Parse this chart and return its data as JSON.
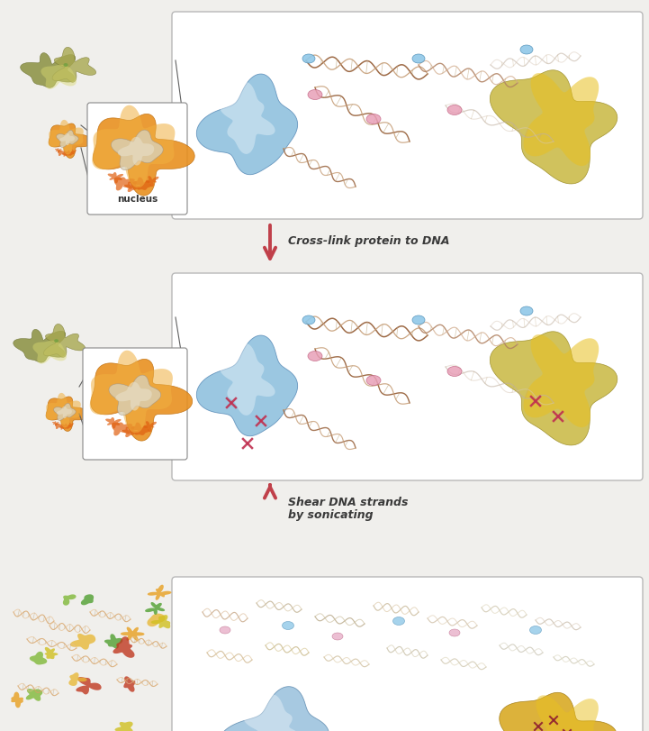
{
  "bg_color": "#f0efec",
  "panel_bg": "#ffffff",
  "panel_border": "#b0b0b0",
  "arrow_color": "#c0404a",
  "text_color": "#3a3a3a",
  "step1_label": "Cross-link protein to DNA",
  "step2_label": "Shear DNA strands\nby sonicating",
  "nucleus_label": "nucleus",
  "font_family": "DejaVu Sans",
  "fig_width": 7.21,
  "fig_height": 8.12
}
